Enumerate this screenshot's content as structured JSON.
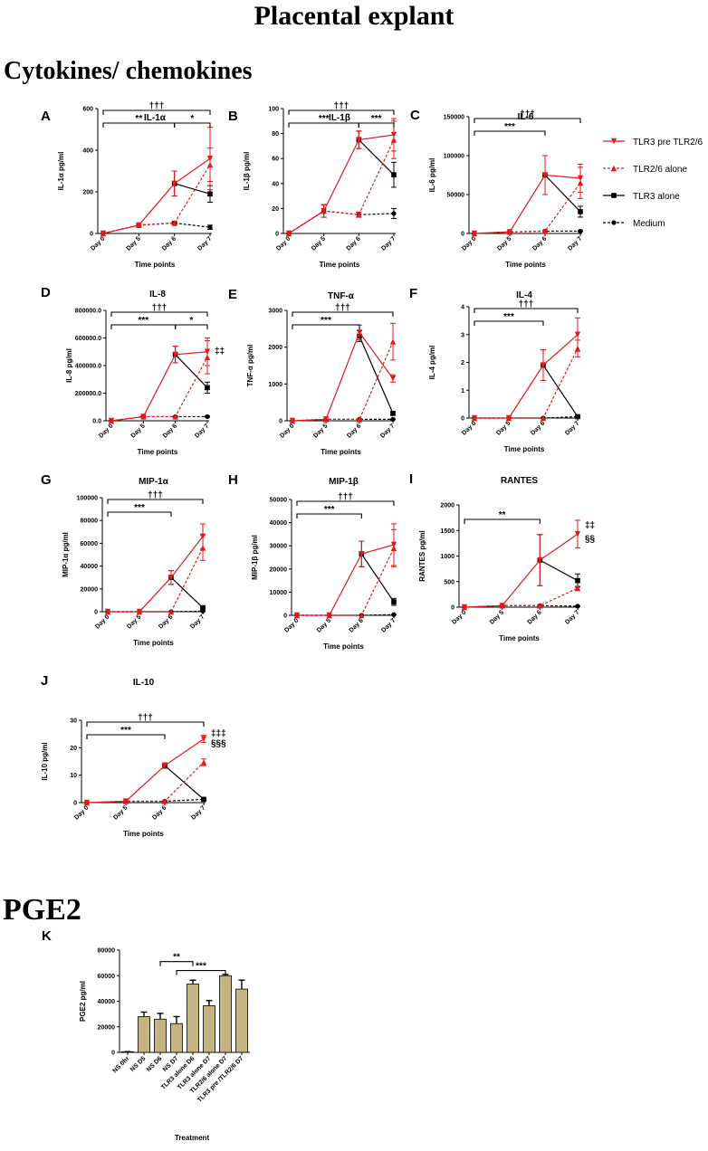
{
  "headings": {
    "main": "Placental explant",
    "section1": "Cytokines/ chemokines",
    "section2": "PGE2"
  },
  "legend": [
    {
      "label": "TLR3 pre TLR2/6",
      "color": "#e3191c",
      "marker": "triangle-down",
      "dash": false
    },
    {
      "label": "TLR2/6 alone",
      "color": "#e3191c",
      "marker": "triangle-up",
      "dash": true
    },
    {
      "label": "TLR3 alone",
      "color": "#000000",
      "marker": "square",
      "dash": false
    },
    {
      "label": "Medium",
      "color": "#000000",
      "marker": "circle",
      "dash": true
    }
  ],
  "chart_data": [
    {
      "type": "line",
      "panel": "A",
      "title": "IL-1α",
      "ylabel": "IL-1α pg/ml",
      "xlabel": "Time points",
      "categories": [
        "Day 0",
        "Day 5",
        "Day 6",
        "Day 7"
      ],
      "ylim": [
        0,
        600
      ],
      "yticks": [
        "0",
        "200",
        "400",
        "600"
      ],
      "series": [
        {
          "values": [
            0,
            40,
            240,
            360
          ],
          "err": [
            0,
            5,
            60,
            150
          ]
        },
        {
          "values": [
            0,
            40,
            50,
            330
          ],
          "err": [
            0,
            5,
            10,
            80
          ]
        },
        {
          "values": [
            null,
            null,
            240,
            190
          ],
          "err": [
            0,
            0,
            60,
            40
          ]
        },
        {
          "values": [
            0,
            40,
            50,
            30
          ],
          "err": [
            0,
            5,
            5,
            10
          ]
        }
      ],
      "annotations": [
        {
          "text": "†††",
          "from": 0,
          "to": 3,
          "level": 1
        },
        {
          "text": "**",
          "from": 0,
          "to": 2,
          "level": 0
        },
        {
          "text": "*",
          "from": 2,
          "to": 3,
          "level": 0
        }
      ],
      "side_text": []
    },
    {
      "type": "line",
      "panel": "B",
      "title": "IL-1β",
      "ylabel": "IL-1β pg/ml",
      "xlabel": "Time points",
      "categories": [
        "Day 0",
        "Day 5",
        "Day 6",
        "Day 7"
      ],
      "ylim": [
        0,
        100
      ],
      "yticks": [
        "0",
        "20",
        "40",
        "60",
        "80",
        "100"
      ],
      "series": [
        {
          "values": [
            0,
            18,
            75,
            79
          ],
          "err": [
            0,
            5,
            7,
            13
          ]
        },
        {
          "values": [
            0,
            18,
            15,
            75
          ],
          "err": [
            0,
            5,
            2,
            15
          ]
        },
        {
          "values": [
            null,
            null,
            75,
            47
          ],
          "err": [
            0,
            0,
            7,
            10
          ]
        },
        {
          "values": [
            0,
            18,
            15,
            16
          ],
          "err": [
            0,
            5,
            2,
            4
          ]
        }
      ],
      "annotations": [
        {
          "text": "†††",
          "from": 0,
          "to": 3,
          "level": 1
        },
        {
          "text": "***",
          "from": 0,
          "to": 2,
          "level": 0
        },
        {
          "text": "***",
          "from": 2,
          "to": 3,
          "level": 0
        }
      ],
      "side_text": []
    },
    {
      "type": "line",
      "panel": "C",
      "title": "IL-6",
      "ylabel": "IL-6 pg/ml",
      "xlabel": "Time points",
      "categories": [
        "Day 0",
        "Day 5",
        "Day 6",
        "Day 7"
      ],
      "ylim": [
        0,
        150000
      ],
      "yticks": [
        "0",
        "50000",
        "100000",
        "150000"
      ],
      "series": [
        {
          "values": [
            0,
            2000,
            75000,
            71000
          ],
          "err": [
            0,
            1000,
            25000,
            18000
          ]
        },
        {
          "values": [
            0,
            2000,
            3000,
            65000
          ],
          "err": [
            0,
            1000,
            1000,
            20000
          ]
        },
        {
          "values": [
            null,
            null,
            75000,
            28000
          ],
          "err": [
            0,
            0,
            25000,
            7000
          ]
        },
        {
          "values": [
            0,
            2000,
            3000,
            3000
          ],
          "err": [
            0,
            1000,
            500,
            500
          ]
        }
      ],
      "annotations": [
        {
          "text": "†††",
          "from": 0,
          "to": 3,
          "level": 1
        },
        {
          "text": "***",
          "from": 0,
          "to": 2,
          "level": 0
        }
      ],
      "side_text": []
    },
    {
      "type": "line",
      "panel": "D",
      "title": "IL-8",
      "ylabel": "IL-8 pg/ml",
      "xlabel": "Time points",
      "categories": [
        "Day 0",
        "Day 5",
        "Day 6",
        "Day 7"
      ],
      "ylim": [
        0,
        800000
      ],
      "yticks": [
        "0.0",
        "200000.0",
        "400000.0",
        "600000.0",
        "800000.0"
      ],
      "series": [
        {
          "values": [
            0,
            30000,
            480000,
            500000
          ],
          "err": [
            0,
            5000,
            60000,
            100000
          ]
        },
        {
          "values": [
            0,
            30000,
            30000,
            460000
          ],
          "err": [
            0,
            5000,
            5000,
            120000
          ]
        },
        {
          "values": [
            null,
            null,
            480000,
            240000
          ],
          "err": [
            0,
            0,
            60000,
            40000
          ]
        },
        {
          "values": [
            0,
            30000,
            30000,
            30000
          ],
          "err": [
            0,
            5000,
            5000,
            5000
          ]
        }
      ],
      "annotations": [
        {
          "text": "†††",
          "from": 0,
          "to": 3,
          "level": 1
        },
        {
          "text": "***",
          "from": 0,
          "to": 2,
          "level": 0
        },
        {
          "text": "*",
          "from": 2,
          "to": 3,
          "level": 0
        }
      ],
      "side_text": [
        {
          "text": "‡‡",
          "y": 510000
        }
      ]
    },
    {
      "type": "line",
      "panel": "E",
      "title": "TNF-α",
      "ylabel": "TNF-α pg/ml",
      "xlabel": "Time points",
      "categories": [
        "Day 0",
        "Day 5",
        "Day 6",
        "Day 7"
      ],
      "ylim": [
        0,
        3000
      ],
      "yticks": [
        "0",
        "1000",
        "2000",
        "3000"
      ],
      "series": [
        {
          "values": [
            0,
            40,
            2400,
            1150
          ],
          "err": [
            0,
            10,
            200,
            100
          ]
        },
        {
          "values": [
            0,
            40,
            40,
            2150
          ],
          "err": [
            0,
            10,
            10,
            500
          ]
        },
        {
          "values": [
            null,
            null,
            2300,
            200
          ],
          "err": [
            0,
            0,
            150,
            50
          ]
        },
        {
          "values": [
            0,
            40,
            40,
            40
          ],
          "err": [
            0,
            10,
            10,
            10
          ]
        }
      ],
      "annotations": [
        {
          "text": "†††",
          "from": 0,
          "to": 3,
          "level": 1
        },
        {
          "text": "***",
          "from": 0,
          "to": 2,
          "level": 0
        }
      ],
      "side_text": []
    },
    {
      "type": "line",
      "panel": "F",
      "title": "IL-4",
      "ylabel": "IL-4 pg/ml",
      "xlabel": "Time points",
      "categories": [
        "Day 0",
        "Day 5",
        "Day 6",
        "Day 7"
      ],
      "ylim": [
        0,
        4
      ],
      "yticks": [
        "0",
        "1",
        "2",
        "3",
        "4"
      ],
      "series": [
        {
          "values": [
            0,
            0,
            1.9,
            3.0
          ],
          "err": [
            0,
            0,
            0.55,
            0.6
          ]
        },
        {
          "values": [
            0,
            0,
            0,
            2.5
          ],
          "err": [
            0,
            0,
            0,
            0.3
          ]
        },
        {
          "values": [
            null,
            null,
            1.9,
            0.05
          ],
          "err": [
            0,
            0,
            0.55,
            0.02
          ]
        },
        {
          "values": [
            0,
            0,
            0,
            0.05
          ],
          "err": [
            0,
            0,
            0,
            0.02
          ]
        }
      ],
      "annotations": [
        {
          "text": "†††",
          "from": 0,
          "to": 3,
          "level": 1
        },
        {
          "text": "***",
          "from": 0,
          "to": 2,
          "level": 0
        }
      ],
      "side_text": []
    },
    {
      "type": "line",
      "panel": "G",
      "title": "MIP-1α",
      "ylabel": "MIP-1α pg/ml",
      "xlabel": "Time points",
      "categories": [
        "Day 0",
        "Day 5",
        "Day 6",
        "Day 7"
      ],
      "ylim": [
        0,
        100000
      ],
      "yticks": [
        "0",
        "20000",
        "40000",
        "60000",
        "80000",
        "100000"
      ],
      "series": [
        {
          "values": [
            0,
            0,
            30000,
            66000
          ],
          "err": [
            0,
            0,
            6000,
            11000
          ]
        },
        {
          "values": [
            0,
            0,
            0,
            56000
          ],
          "err": [
            0,
            0,
            0,
            11000
          ]
        },
        {
          "values": [
            null,
            null,
            30000,
            3500
          ],
          "err": [
            0,
            0,
            6000,
            1000
          ]
        },
        {
          "values": [
            0,
            0,
            0,
            500
          ],
          "err": [
            0,
            0,
            0,
            200
          ]
        }
      ],
      "annotations": [
        {
          "text": "†††",
          "from": 0,
          "to": 3,
          "level": 1
        },
        {
          "text": "***",
          "from": 0,
          "to": 2,
          "level": 0
        }
      ],
      "side_text": []
    },
    {
      "type": "line",
      "panel": "H",
      "title": "MIP-1β",
      "ylabel": "MIP-1β pg/ml",
      "xlabel": "Time points",
      "categories": [
        "Day 0",
        "Day 5",
        "Day 6",
        "Day 7"
      ],
      "ylim": [
        0,
        50000
      ],
      "yticks": [
        "0",
        "10000",
        "20000",
        "30000",
        "40000",
        "50000"
      ],
      "series": [
        {
          "values": [
            0,
            0,
            26500,
            30500
          ],
          "err": [
            0,
            0,
            5500,
            9000
          ]
        },
        {
          "values": [
            0,
            0,
            0,
            29000
          ],
          "err": [
            0,
            0,
            0,
            8000
          ]
        },
        {
          "values": [
            null,
            null,
            26500,
            5800
          ],
          "err": [
            0,
            0,
            5500,
            1500
          ]
        },
        {
          "values": [
            0,
            0,
            0,
            300
          ],
          "err": [
            0,
            0,
            0,
            100
          ]
        }
      ],
      "annotations": [
        {
          "text": "†††",
          "from": 0,
          "to": 3,
          "level": 1
        },
        {
          "text": "***",
          "from": 0,
          "to": 2,
          "level": 0
        }
      ],
      "side_text": []
    },
    {
      "type": "line",
      "panel": "I",
      "title": "RANTES",
      "ylabel": "RANTES pg/ml",
      "xlabel": "Time points",
      "categories": [
        "Day 0",
        "Day 5",
        "Day 6",
        "Day 7"
      ],
      "ylim": [
        0,
        2000
      ],
      "yticks": [
        "0",
        "500",
        "1000",
        "1500",
        "2000"
      ],
      "series": [
        {
          "values": [
            0,
            30,
            920,
            1430
          ],
          "err": [
            0,
            10,
            500,
            270
          ]
        },
        {
          "values": [
            0,
            30,
            30,
            370
          ],
          "err": [
            0,
            10,
            10,
            40
          ]
        },
        {
          "values": [
            null,
            null,
            920,
            520
          ],
          "err": [
            0,
            0,
            500,
            130
          ]
        },
        {
          "values": [
            0,
            30,
            30,
            20
          ],
          "err": [
            0,
            10,
            10,
            5
          ]
        }
      ],
      "annotations": [
        {
          "text": "**",
          "from": 0,
          "to": 2,
          "level": 0
        }
      ],
      "side_text": [
        {
          "text": "‡‡",
          "y": 1620
        },
        {
          "text": "§§",
          "y": 1350
        }
      ]
    },
    {
      "type": "line",
      "panel": "J",
      "title": "IL-10",
      "ylabel": "IL-10 pg/ml",
      "xlabel": "Time points",
      "categories": [
        "Day 0",
        "Day 5",
        "Day 6",
        "Day 7"
      ],
      "ylim": [
        0,
        30
      ],
      "yticks": [
        "0",
        "10",
        "20",
        "30"
      ],
      "series": [
        {
          "values": [
            0,
            0.5,
            13.5,
            23.2
          ],
          "err": [
            0,
            0.2,
            1,
            1.3
          ]
        },
        {
          "values": [
            0,
            0.5,
            0.5,
            14.7
          ],
          "err": [
            0,
            0.2,
            0.2,
            1.2
          ]
        },
        {
          "values": [
            null,
            null,
            13.5,
            1.2
          ],
          "err": [
            0,
            0,
            1,
            0.3
          ]
        },
        {
          "values": [
            0,
            0.5,
            0.5,
            1.2
          ],
          "err": [
            0,
            0.2,
            0.2,
            0.3
          ]
        }
      ],
      "annotations": [
        {
          "text": "†††",
          "from": 0,
          "to": 3,
          "level": 1
        },
        {
          "text": "***",
          "from": 0,
          "to": 2,
          "level": 0
        }
      ],
      "side_text": [
        {
          "text": "‡‡‡",
          "y": 25.5
        },
        {
          "text": "§§§",
          "y": 22
        }
      ]
    },
    {
      "type": "bar",
      "panel": "K",
      "ylabel": "PGE2 pg/ml",
      "xlabel": "Treatment",
      "categories": [
        "NS 0hr",
        "NS D5",
        "NS D6",
        "NS D7",
        "TLR3 alone D6",
        "TLR3 alone D7",
        "TLR2/6 alone D7",
        "TLR3 pre /TLR2/6 D7"
      ],
      "values": [
        500,
        28000,
        26000,
        22500,
        53500,
        36500,
        60000,
        49500
      ],
      "err": [
        100,
        3500,
        4500,
        5500,
        3000,
        4000,
        1000,
        7000
      ],
      "ylim": [
        0,
        80000
      ],
      "yticks": [
        "0",
        "20000",
        "40000",
        "60000",
        "80000"
      ],
      "bar_color": "#c4b482",
      "annotations": [
        {
          "text": "**",
          "from": 2,
          "to": 4,
          "y": 71000
        },
        {
          "text": "***",
          "from": 3,
          "to": 6,
          "y": 64000
        }
      ]
    }
  ]
}
